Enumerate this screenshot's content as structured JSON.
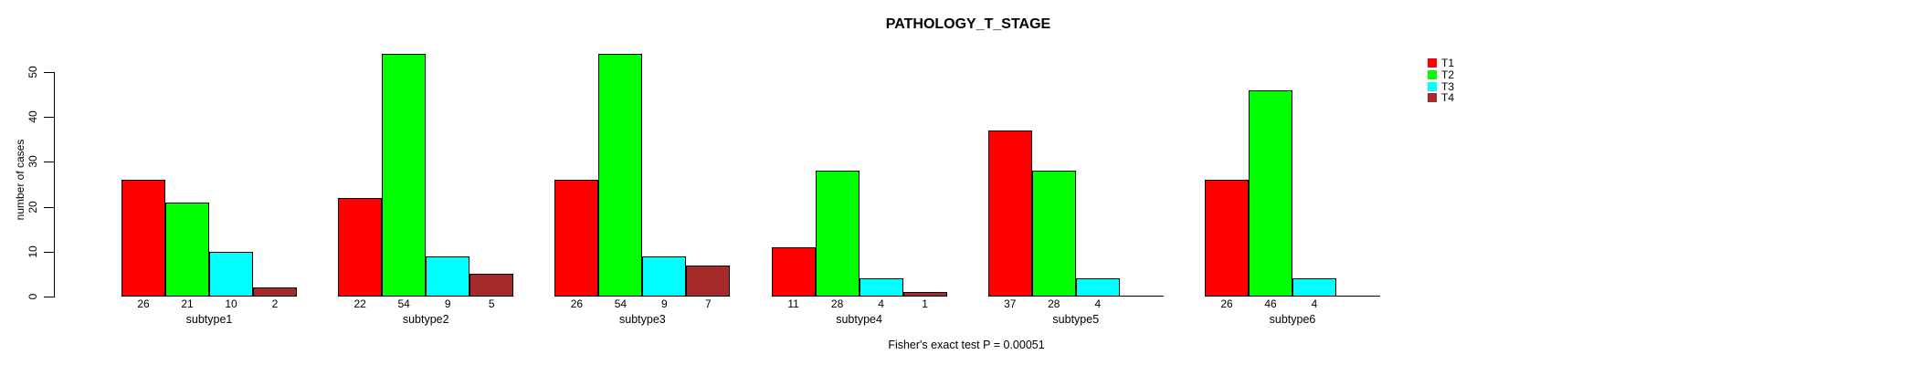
{
  "chart_data": {
    "type": "bar",
    "title": "PATHOLOGY_T_STAGE",
    "xlabel": "",
    "ylabel": "number of cases",
    "categories": [
      "subtype1",
      "subtype2",
      "subtype3",
      "subtype4",
      "subtype5",
      "subtype6"
    ],
    "series": [
      {
        "name": "T1",
        "color": "#FF0000",
        "values": [
          26,
          22,
          26,
          11,
          37,
          26
        ]
      },
      {
        "name": "T2",
        "color": "#00FF00",
        "values": [
          21,
          54,
          54,
          28,
          28,
          46
        ]
      },
      {
        "name": "T3",
        "color": "#00FFFF",
        "values": [
          10,
          9,
          9,
          4,
          4,
          4
        ]
      },
      {
        "name": "T4",
        "color": "#A52A2A",
        "values": [
          2,
          5,
          7,
          1,
          null,
          null
        ]
      }
    ],
    "yticks": [
      0,
      10,
      20,
      30,
      40,
      50
    ],
    "ylim": [
      0,
      57
    ],
    "grid": false,
    "legend_position": "right",
    "legend_labels": [
      "T1",
      "T2",
      "T3",
      "T4"
    ],
    "annotation": "Fisher's exact test P = 0.00051",
    "bar_value_labels_shown": true
  }
}
